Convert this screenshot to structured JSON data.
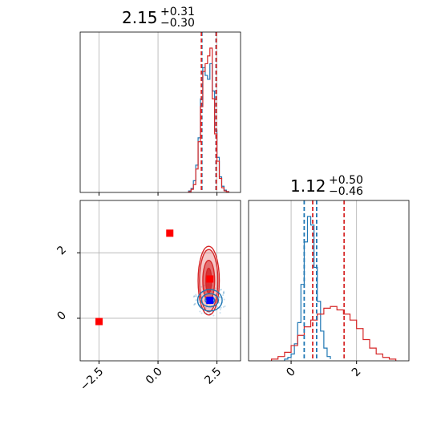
{
  "chart_data": {
    "type": "corner",
    "colors": {
      "model_a": "#1f77b4",
      "model_b": "#d62728",
      "marker_a": "#0000ff",
      "marker_b": "#ff0000",
      "grid": "#b0b0b0"
    },
    "titles": [
      {
        "value": "2.15",
        "plus": "+0.31",
        "minus": "−0.30"
      },
      {
        "value": "1.12",
        "plus": "+0.50",
        "minus": "−0.46"
      }
    ],
    "x_range": [
      -3.3,
      3.5
    ],
    "y_range": [
      -1.3,
      3.6
    ],
    "p1_ticks": [
      "−2.5",
      "0.0",
      "2.5"
    ],
    "p1_tick_values": [
      -2.5,
      0.0,
      2.5
    ],
    "p2_ticks": [
      "0",
      "2"
    ],
    "p2_tick_values": [
      0,
      2
    ],
    "grid": true,
    "hist_x": {
      "bin_edges": [
        1.3,
        1.4,
        1.5,
        1.6,
        1.7,
        1.8,
        1.9,
        2.0,
        2.1,
        2.2,
        2.3,
        2.4,
        2.5,
        2.6,
        2.7,
        2.8,
        2.9,
        3.0
      ],
      "series": [
        {
          "color": "#1f77b4",
          "counts": [
            2,
            5,
            15,
            35,
            70,
            120,
            160,
            150,
            145,
            165,
            130,
            80,
            45,
            20,
            8,
            3,
            1
          ]
        },
        {
          "color": "#d62728",
          "counts": [
            1,
            4,
            10,
            30,
            65,
            110,
            155,
            165,
            175,
            185,
            120,
            75,
            40,
            18,
            6,
            2,
            1
          ]
        }
      ],
      "quantile_lines": [
        {
          "color": "#1f77b4",
          "values": [
            1.86,
            2.46
          ]
        },
        {
          "color": "#d62728",
          "values": [
            1.84,
            2.47
          ]
        }
      ]
    },
    "hist_y": {
      "series": [
        {
          "color": "#1f77b4",
          "bin_edges": [
            -0.2,
            -0.1,
            0.0,
            0.1,
            0.2,
            0.3,
            0.4,
            0.5,
            0.6,
            0.7,
            0.8,
            0.9,
            1.0,
            1.1,
            1.2
          ],
          "counts": [
            2,
            4,
            8,
            20,
            45,
            90,
            140,
            170,
            160,
            110,
            70,
            35,
            15,
            5,
            2
          ]
        },
        {
          "color": "#d62728",
          "bin_edges": [
            -0.6,
            -0.4,
            -0.2,
            0.0,
            0.2,
            0.4,
            0.6,
            0.8,
            1.0,
            1.2,
            1.4,
            1.6,
            1.8,
            2.0,
            2.2,
            2.4,
            2.6,
            2.8,
            3.0,
            3.2
          ],
          "counts": [
            2,
            5,
            10,
            18,
            30,
            40,
            48,
            55,
            62,
            64,
            60,
            55,
            48,
            38,
            25,
            15,
            8,
            4,
            2
          ]
        }
      ],
      "quantile_lines": [
        {
          "color": "#1f77b4",
          "values": [
            0.4,
            0.78
          ]
        },
        {
          "color": "#d62728",
          "values": [
            0.66,
            1.62
          ]
        }
      ]
    },
    "contours": [
      {
        "color": "#d62728",
        "center": [
          2.15,
          1.15
        ],
        "levels": [
          {
            "rx": 0.12,
            "ry": 0.38,
            "fill_opacity": 0.85
          },
          {
            "rx": 0.25,
            "ry": 0.62,
            "fill_opacity": 0.55
          },
          {
            "rx": 0.39,
            "ry": 0.95,
            "fill_opacity": 0.25
          },
          {
            "rx": 0.45,
            "ry": 1.05,
            "fill_opacity": 0.0
          }
        ]
      },
      {
        "color": "#1f77b4",
        "center": [
          2.2,
          0.55
        ],
        "levels": [
          {
            "rx": 0.2,
            "ry": 0.1,
            "fill_opacity": 0.0
          },
          {
            "rx": 0.36,
            "ry": 0.2,
            "fill_opacity": 0.0
          },
          {
            "rx": 0.52,
            "ry": 0.33,
            "fill_opacity": 0.0
          }
        ]
      }
    ],
    "markers": [
      {
        "color": "#ff0000",
        "x": 0.5,
        "y": 2.6
      },
      {
        "color": "#ff0000",
        "x": -2.5,
        "y": -0.1
      },
      {
        "color": "#ff0000",
        "x": 2.2,
        "y": 1.2
      },
      {
        "color": "#0000ff",
        "x": 2.2,
        "y": 0.55
      }
    ],
    "grid_lines_x": [
      -2.5,
      0.0,
      2.5
    ],
    "grid_lines_y": [
      0,
      2
    ]
  }
}
